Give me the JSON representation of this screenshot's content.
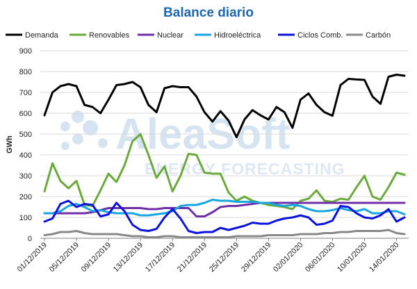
{
  "chart_data": {
    "type": "line",
    "title": "Balance diario",
    "ylabel": "GWh",
    "xlabel": "",
    "ylim": [
      0,
      900
    ],
    "yticks": [
      0,
      100,
      200,
      300,
      400,
      500,
      600,
      700,
      800,
      900
    ],
    "grid": "horizontal",
    "legend_position": "top",
    "watermark": {
      "brand": "AleaSoft",
      "tagline": "ENERGY FORECASTING"
    },
    "x_tick_labels": [
      "01/12/2019",
      "05/12/2019",
      "09/12/2019",
      "13/12/2019",
      "17/12/2019",
      "21/12/2019",
      "25/12/2019",
      "29/12/2019",
      "02/01/2020",
      "06/01/2020",
      "10/01/2020",
      "14/01/2020"
    ],
    "x_tick_every": 4,
    "series": [
      {
        "name": "Demanda",
        "color": "#000000",
        "values": [
          590,
          700,
          730,
          740,
          730,
          640,
          630,
          600,
          665,
          735,
          740,
          750,
          725,
          640,
          605,
          720,
          730,
          725,
          725,
          680,
          605,
          560,
          610,
          565,
          485,
          570,
          615,
          590,
          570,
          630,
          605,
          530,
          665,
          695,
          640,
          605,
          588,
          735,
          765,
          762,
          760,
          680,
          645,
          775,
          785,
          780
        ]
      },
      {
        "name": "Renovables",
        "color": "#6aaa3a",
        "values": [
          225,
          360,
          275,
          240,
          275,
          160,
          155,
          230,
          310,
          270,
          350,
          465,
          500,
          400,
          290,
          345,
          225,
          300,
          405,
          400,
          315,
          310,
          310,
          220,
          180,
          200,
          180,
          170,
          160,
          155,
          150,
          140,
          180,
          190,
          230,
          180,
          175,
          190,
          185,
          245,
          300,
          200,
          185,
          245,
          315,
          305
        ]
      },
      {
        "name": "Nuclear",
        "color": "#6f2da8",
        "values": [
          120,
          120,
          120,
          120,
          120,
          120,
          125,
          135,
          145,
          145,
          145,
          145,
          145,
          140,
          140,
          145,
          145,
          145,
          145,
          105,
          105,
          125,
          150,
          155,
          155,
          160,
          165,
          170,
          170,
          170,
          170,
          170,
          170,
          170,
          170,
          170,
          170,
          170,
          170,
          170,
          170,
          170,
          170,
          170,
          170,
          170
        ]
      },
      {
        "name": "Hidroeléctrica",
        "color": "#17a6e0",
        "values": [
          120,
          120,
          130,
          155,
          165,
          150,
          130,
          135,
          125,
          120,
          120,
          120,
          110,
          110,
          115,
          120,
          130,
          155,
          160,
          160,
          170,
          185,
          180,
          180,
          175,
          175,
          175,
          170,
          170,
          160,
          155,
          160,
          155,
          140,
          130,
          130,
          135,
          145,
          135,
          130,
          140,
          120,
          120,
          130,
          130,
          115
        ]
      },
      {
        "name": "Ciclos Comb.",
        "color": "#0a12e0",
        "values": [
          80,
          95,
          165,
          180,
          150,
          165,
          160,
          105,
          115,
          170,
          130,
          65,
          40,
          35,
          45,
          100,
          140,
          95,
          35,
          25,
          30,
          30,
          50,
          40,
          50,
          60,
          75,
          70,
          70,
          85,
          95,
          100,
          110,
          100,
          65,
          70,
          85,
          155,
          150,
          120,
          100,
          95,
          110,
          140,
          80,
          100
        ]
      },
      {
        "name": "Carbón",
        "color": "#888888",
        "values": [
          15,
          20,
          30,
          30,
          35,
          25,
          20,
          20,
          20,
          20,
          15,
          10,
          10,
          5,
          5,
          10,
          10,
          5,
          5,
          5,
          5,
          5,
          5,
          5,
          10,
          10,
          10,
          10,
          15,
          15,
          15,
          15,
          20,
          20,
          20,
          25,
          25,
          30,
          30,
          35,
          35,
          35,
          35,
          40,
          25,
          20
        ]
      }
    ]
  }
}
